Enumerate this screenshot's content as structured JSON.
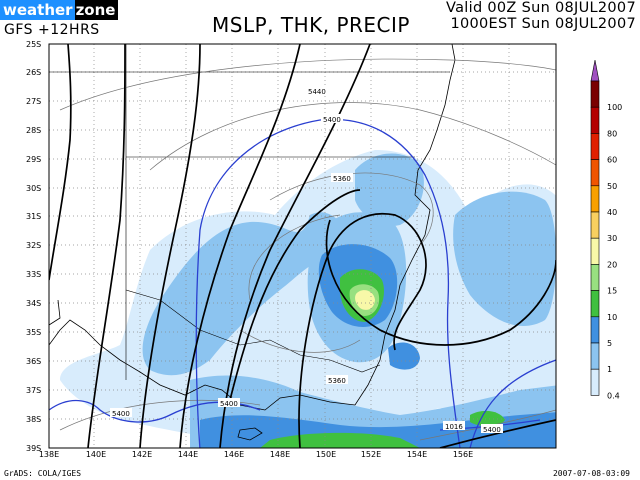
{
  "header": {
    "logo_part1": "weather",
    "logo_part2": "zone",
    "model": "GFS  +12HRS",
    "title": "MSLP, THK, PRECIP",
    "valid_line1": "Valid 00Z Sun 08JUL2007",
    "valid_line2": "1000EST Sun 08JUL2007"
  },
  "footer": {
    "credit": "GrADS: COLA/IGES",
    "timestamp": "2007-07-08-03:09"
  },
  "map": {
    "lat_labels": [
      "25S",
      "26S",
      "27S",
      "28S",
      "29S",
      "30S",
      "31S",
      "32S",
      "33S",
      "34S",
      "35S",
      "36S",
      "37S",
      "38S",
      "39S"
    ],
    "lon_labels": [
      "138E",
      "140E",
      "142E",
      "144E",
      "146E",
      "148E",
      "150E",
      "152E",
      "154E",
      "156E"
    ],
    "contour_labels": {
      "thk_5400_a": "5400",
      "thk_5400_b": "5400",
      "thk_5400_c": "5400",
      "thk_5400_d": "5400",
      "thk_5440": "5440",
      "thk_5360_a": "5360",
      "thk_5360_b": "5360",
      "mslp_1016": "1016"
    }
  },
  "legend": {
    "levels": [
      "100",
      "80",
      "60",
      "50",
      "40",
      "30",
      "20",
      "15",
      "10",
      "5",
      "1",
      "0.4"
    ],
    "colors": [
      "#7a0000",
      "#b40000",
      "#e02000",
      "#f05500",
      "#f8a000",
      "#f8d060",
      "#f8f8a8",
      "#98e080",
      "#40c040",
      "#4090e0",
      "#8cc4f0",
      "#d8ecfc"
    ],
    "arrow_color": "#a050c0"
  }
}
